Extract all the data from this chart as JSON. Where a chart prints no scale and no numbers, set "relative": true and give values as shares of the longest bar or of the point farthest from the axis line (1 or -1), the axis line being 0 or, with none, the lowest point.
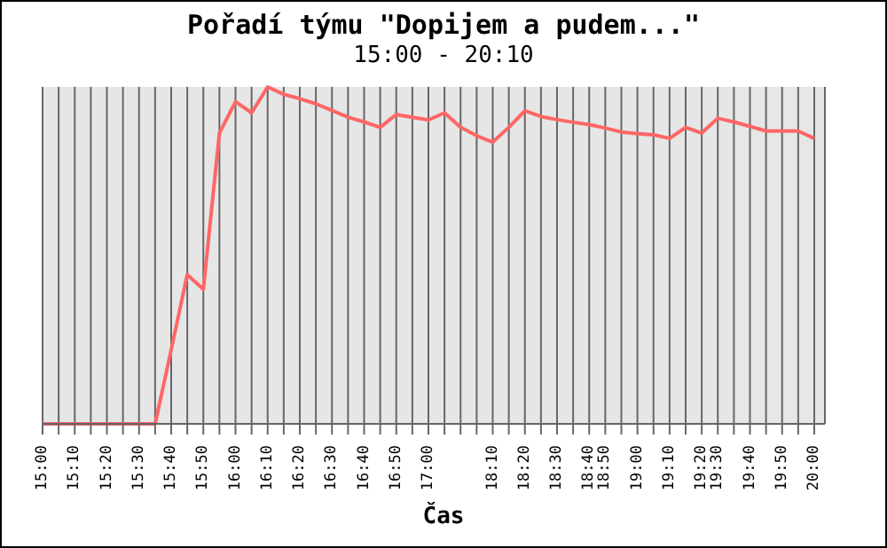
{
  "chart_data": {
    "type": "line",
    "title": "Pořadí týmu \"Dopijem a pudem...\"",
    "subtitle": "15:00 - 20:10",
    "xlabel": "Čas",
    "relative": true,
    "grid": "x",
    "categories": [
      "15:00",
      null,
      "15:10",
      null,
      "15:20",
      null,
      "15:30",
      null,
      "15:40",
      null,
      "15:50",
      null,
      "16:00",
      null,
      "16:10",
      null,
      "16:20",
      null,
      "16:30",
      null,
      "16:40",
      null,
      "16:50",
      null,
      "17:00",
      null,
      null,
      null,
      "18:10",
      null,
      "18:20",
      null,
      "18:30",
      null,
      "18:40",
      "18:50",
      null,
      "19:00",
      null,
      "19:10",
      null,
      "19:20",
      "19:30",
      null,
      "19:40",
      null,
      "19:50",
      null,
      "20:00"
    ],
    "series": [
      {
        "color": "#ff6666",
        "values": [
          0,
          0,
          0,
          0,
          0,
          0,
          0,
          0,
          0.22,
          0.443,
          0.399,
          0.863,
          0.956,
          0.923,
          1,
          0.978,
          0.965,
          0.95,
          0.93,
          0.91,
          0.896,
          0.88,
          0.918,
          0.91,
          0.902,
          0.923,
          0.88,
          0.855,
          0.836,
          0.88,
          0.929,
          0.912,
          0.903,
          0.895,
          0.888,
          0.878,
          0.866,
          0.861,
          0.858,
          0.847,
          0.88,
          0.863,
          0.907,
          0.896,
          0.883,
          0.869,
          0.869,
          0.869,
          0.847
        ]
      }
    ]
  }
}
